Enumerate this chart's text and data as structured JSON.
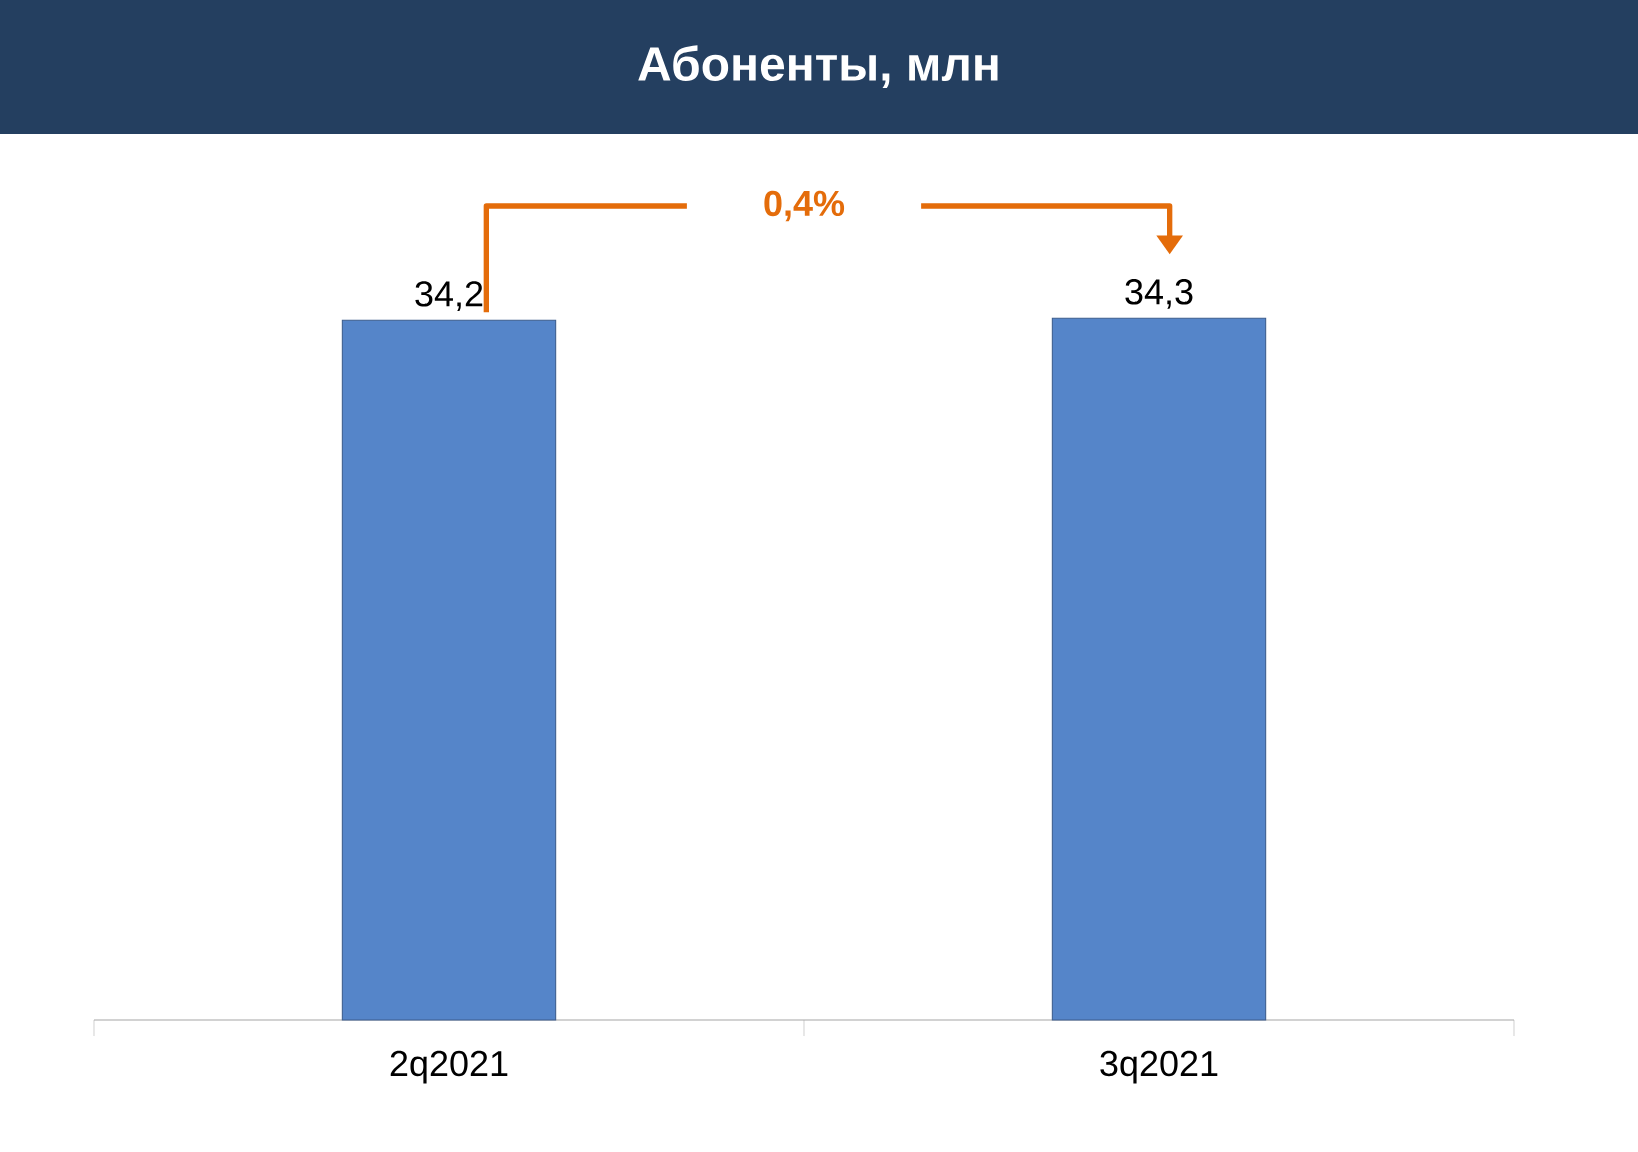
{
  "chart_data": {
    "type": "bar",
    "title": "Абоненты, млн",
    "categories": [
      "2q2021",
      "3q2021"
    ],
    "values": [
      34.2,
      34.3
    ],
    "value_labels": [
      "34,2",
      "34,3"
    ],
    "color": "#5585c9",
    "annotations": [
      "0,4%"
    ]
  }
}
